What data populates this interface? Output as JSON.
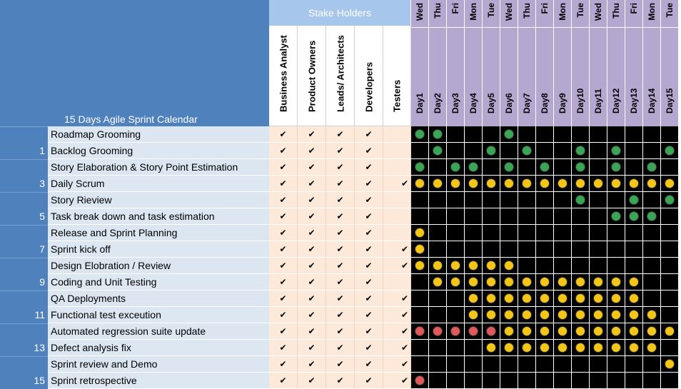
{
  "sheet": {
    "title": "15 Days Agile Sprint Calendar",
    "stakeholders_header": "Stake Holders",
    "stakeholders": [
      "Business Analyst",
      "Product Owners",
      "Leads/ Architects",
      "Developers",
      "Testers"
    ],
    "weekdays": [
      "Wed",
      "Thu",
      "Fri",
      "Mon",
      "Tue",
      "Wed",
      "Thu",
      "Fri",
      "Mon",
      "Tue",
      "Wed",
      "Thu",
      "Fri",
      "Mon",
      "Tue"
    ],
    "days": [
      "Day1",
      "Day2",
      "Day3",
      "Day4",
      "Day5",
      "Day6",
      "Day7",
      "Day8",
      "Day9",
      "Day10",
      "Day11",
      "Day12",
      "Day13",
      "Day14",
      "Day15"
    ],
    "check_glyph": "✔",
    "colors": {
      "green": "#3aa655",
      "yellow": "#f5c518",
      "red": "#e05a5a",
      "title_bg": "#4f81bd",
      "stakeholder_bg": "#a7c6ec",
      "day_header_bg": "#b4a7d0",
      "check_bg": "#fde9d9"
    },
    "activities": [
      {
        "number": "",
        "name": "Roadmap Grooming",
        "checks": [
          1,
          1,
          1,
          1,
          0
        ],
        "marks": [
          "G",
          "G",
          "",
          "",
          "",
          "G",
          "",
          "",
          "",
          "",
          "",
          "",
          "",
          "",
          ""
        ]
      },
      {
        "number": "1",
        "name": "Backlog Grooming",
        "checks": [
          1,
          1,
          1,
          1,
          0
        ],
        "marks": [
          "",
          "G",
          "",
          "",
          "G",
          "",
          "G",
          "",
          "",
          "G",
          "",
          "G",
          "",
          "",
          "G"
        ]
      },
      {
        "number": "",
        "name": "Story Elaboration & Story Point Estimation",
        "checks": [
          1,
          1,
          1,
          1,
          0
        ],
        "marks": [
          "G",
          "",
          "G",
          "G",
          "",
          "G",
          "",
          "G",
          "",
          "G",
          "",
          "G",
          "",
          "G",
          ""
        ]
      },
      {
        "number": "3",
        "name": "Daily Scrum",
        "checks": [
          1,
          1,
          1,
          1,
          1
        ],
        "marks": [
          "Y",
          "Y",
          "Y",
          "Y",
          "Y",
          "Y",
          "Y",
          "Y",
          "Y",
          "Y",
          "Y",
          "Y",
          "Y",
          "Y",
          "Y"
        ]
      },
      {
        "number": "",
        "name": "Story Rieview",
        "checks": [
          1,
          1,
          1,
          1,
          0
        ],
        "marks": [
          "",
          "",
          "",
          "",
          "",
          "",
          "",
          "",
          "",
          "G",
          "",
          "",
          "G",
          "",
          "G"
        ]
      },
      {
        "number": "5",
        "name": "Task break down and task estimation",
        "checks": [
          1,
          1,
          1,
          1,
          0
        ],
        "marks": [
          "",
          "",
          "",
          "",
          "",
          "",
          "",
          "",
          "",
          "",
          "",
          "G",
          "G",
          "G",
          ""
        ]
      },
      {
        "number": "",
        "name": "Release and Sprint Planning",
        "checks": [
          1,
          1,
          1,
          1,
          0
        ],
        "marks": [
          "Y",
          "",
          "",
          "",
          "",
          "",
          "",
          "",
          "",
          "",
          "",
          "",
          "",
          "",
          ""
        ]
      },
      {
        "number": "7",
        "name": "Sprint kick off",
        "checks": [
          1,
          1,
          1,
          1,
          1
        ],
        "marks": [
          "Y",
          "",
          "",
          "",
          "",
          "",
          "",
          "",
          "",
          "",
          "",
          "",
          "",
          "",
          ""
        ]
      },
      {
        "number": "",
        "name": "Design Elobration / Review",
        "checks": [
          1,
          1,
          1,
          1,
          1
        ],
        "marks": [
          "Y",
          "Y",
          "Y",
          "Y",
          "Y",
          "Y",
          "",
          "",
          "",
          "",
          "",
          "",
          "",
          "",
          ""
        ]
      },
      {
        "number": "9",
        "name": "Coding and Unit Testing",
        "checks": [
          1,
          1,
          1,
          1,
          0
        ],
        "marks": [
          "",
          "Y",
          "Y",
          "Y",
          "Y",
          "Y",
          "Y",
          "Y",
          "Y",
          "Y",
          "Y",
          "Y",
          "Y",
          "",
          ""
        ]
      },
      {
        "number": "",
        "name": "QA Deployments",
        "checks": [
          1,
          1,
          1,
          1,
          1
        ],
        "marks": [
          "",
          "",
          "",
          "Y",
          "Y",
          "Y",
          "Y",
          "Y",
          "Y",
          "Y",
          "Y",
          "Y",
          "Y",
          "",
          ""
        ]
      },
      {
        "number": "11",
        "name": "Functional test exceution",
        "checks": [
          1,
          1,
          1,
          1,
          1
        ],
        "marks": [
          "",
          "",
          "",
          "Y",
          "Y",
          "Y",
          "Y",
          "Y",
          "Y",
          "Y",
          "Y",
          "Y",
          "Y",
          "Y",
          ""
        ]
      },
      {
        "number": "",
        "name": "Automated regression suite update",
        "checks": [
          1,
          1,
          1,
          1,
          1
        ],
        "marks": [
          "R",
          "R",
          "R",
          "R",
          "R",
          "Y",
          "Y",
          "Y",
          "Y",
          "Y",
          "Y",
          "Y",
          "Y",
          "Y",
          "Y"
        ]
      },
      {
        "number": "13",
        "name": "Defect analysis fix",
        "checks": [
          1,
          1,
          1,
          1,
          1
        ],
        "marks": [
          "",
          "",
          "",
          "",
          "Y",
          "Y",
          "Y",
          "Y",
          "Y",
          "Y",
          "Y",
          "Y",
          "Y",
          "Y",
          ""
        ]
      },
      {
        "number": "",
        "name": "Sprint review and Demo",
        "checks": [
          1,
          1,
          1,
          1,
          1
        ],
        "marks": [
          "",
          "",
          "",
          "",
          "",
          "",
          "",
          "",
          "",
          "",
          "",
          "",
          "",
          "",
          "Y"
        ]
      },
      {
        "number": "15",
        "name": "Sprint retrospective",
        "checks": [
          1,
          1,
          1,
          1,
          1
        ],
        "marks": [
          "R",
          "",
          "",
          "",
          "",
          "",
          "",
          "",
          "",
          "",
          "",
          "",
          "",
          "",
          ""
        ]
      }
    ]
  }
}
